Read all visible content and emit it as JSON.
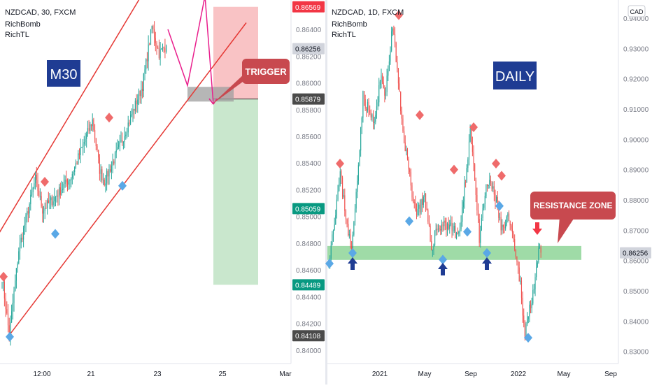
{
  "colors": {
    "up": "#26a69a",
    "down": "#ef5350",
    "channel": "#e53935",
    "pink_path": "#e91e8c",
    "label_box": "#1f3c93",
    "callout": "#c8494f",
    "zone": "#7fcf8a",
    "marker_red": "#ef6b6b",
    "marker_blue": "#5aa8e6",
    "arrow_blue": "#1f3c93",
    "price_red": "#f23645",
    "price_green": "#089981",
    "price_dark": "#4a4a4a",
    "price_gray": "#d1d4dc"
  },
  "chart_data": [
    {
      "type": "candlestick",
      "symbol_line": "NZDCAD, 30, FXCM",
      "indicators": [
        "RichBomb",
        "RichTL"
      ],
      "panel_label": "M30",
      "callout": "TRIGGER",
      "ylim": [
        0.839,
        0.8662
      ],
      "y_ticks": [
        "0.86400",
        "0.86200",
        "0.86000",
        "0.85800",
        "0.85600",
        "0.85400",
        "0.85200",
        "0.85000",
        "0.84800",
        "0.84600",
        "0.84400",
        "0.84200",
        "0.84000"
      ],
      "x_ticks": [
        "12:00",
        "21",
        "23",
        "25",
        "Mar"
      ],
      "price_labels": [
        {
          "text": "0.86569",
          "value": 0.86569,
          "style": "red"
        },
        {
          "text": "0.86256",
          "value": 0.86256,
          "style": "gray"
        },
        {
          "text": "0.85879",
          "value": 0.85879,
          "style": "dark"
        },
        {
          "text": "0.85059",
          "value": 0.85059,
          "style": "green"
        },
        {
          "text": "0.84489",
          "value": 0.84489,
          "style": "green"
        },
        {
          "text": "0.84108",
          "value": 0.84108,
          "style": "dark"
        }
      ],
      "trade_box": {
        "entry": 0.85879,
        "stop": 0.86569,
        "target": 0.84489
      },
      "channel_lower": {
        "from": 0.8411,
        "to": 0.8645
      },
      "channel_upper": {
        "from": 0.848,
        "to": 0.8714
      },
      "projection_path": [
        0.864,
        0.8598,
        0.8665,
        0.8584
      ]
    },
    {
      "type": "candlestick",
      "symbol_line": "NZDCAD, 1D, FXCM",
      "indicators": [
        "RichBomb",
        "RichTL"
      ],
      "panel_label": "DAILY",
      "callout": "RESISTANCE ZONE",
      "currency_badge": "CAD",
      "ylim": [
        0.826,
        0.946
      ],
      "y_ticks": [
        "0.94000",
        "0.93000",
        "0.92000",
        "0.91000",
        "0.90000",
        "0.89000",
        "0.88000",
        "0.87000",
        "0.86000",
        "0.85000",
        "0.84000",
        "0.83000"
      ],
      "x_ticks": [
        "2021",
        "May",
        "Sep",
        "2022",
        "May",
        "Sep"
      ],
      "price_labels": [
        {
          "text": "0.86256",
          "value": 0.86256,
          "style": "gray"
        }
      ],
      "resistance_zone": [
        0.8602,
        0.8648
      ]
    }
  ]
}
